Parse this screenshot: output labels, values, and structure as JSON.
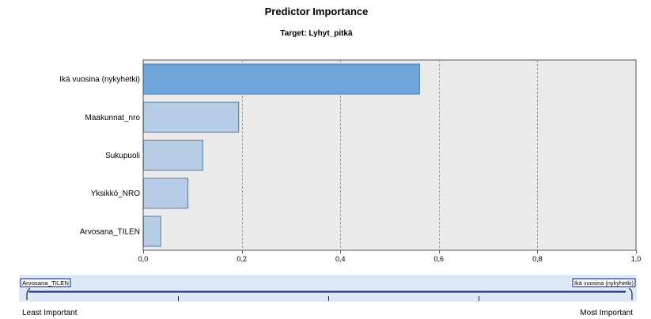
{
  "chart_data": {
    "type": "bar",
    "orientation": "horizontal",
    "title": "Predictor Importance",
    "subtitle": "Target: Lyhyt_pitkä",
    "categories": [
      "Ikä vuosina (nykyhetki)",
      "Maakunnat_nro",
      "Sukupuoli",
      "Yksikkö_NRO",
      "Arvosana_TILEN"
    ],
    "values": [
      0.56,
      0.193,
      0.12,
      0.09,
      0.035
    ],
    "xlim": [
      0,
      1
    ],
    "xticks": [
      "0,0",
      "0,2",
      "0,4",
      "0,6",
      "0,8",
      "1,0"
    ],
    "grid": "vertical dashed lines",
    "colors": {
      "top_bar_fill": "#6fa5da",
      "bar_fill": "#b6cde5",
      "bar_stroke": "#3f7fc4",
      "plot_background": "#ebebeb",
      "gridline": "#9a9a9a",
      "scale_band": "#dde9f8",
      "scale_line": "#0c1f7a"
    }
  },
  "importance_scale": {
    "min_predictor": "Arvosana_TILEN",
    "max_predictor": "Ikä vuosina (nykyhetki)",
    "left_label": "Least Important",
    "right_label": "Most Important"
  }
}
